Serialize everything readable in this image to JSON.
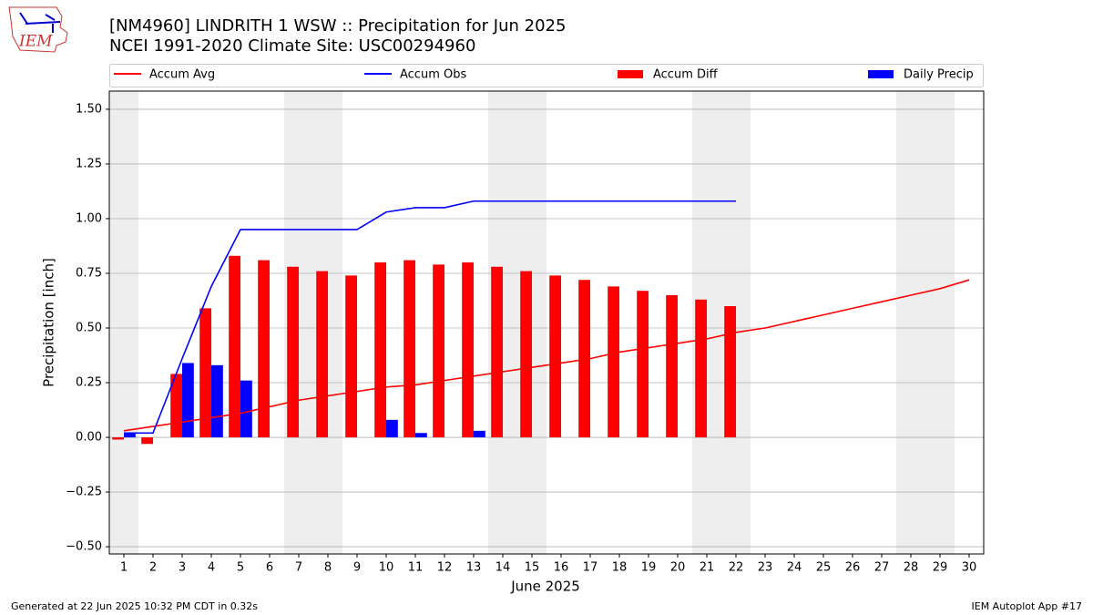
{
  "logo_text": "IEM",
  "footer_left": "Generated at 22 Jun 2025 10:32 PM CDT in 0.32s",
  "footer_right": "IEM Autoplot App #17",
  "chart_data": {
    "type": "bar",
    "title": "[NM4960] LINDRITH 1 WSW :: Precipitation for Jun 2025",
    "subtitle": "NCEI 1991-2020 Climate Site: USC00294960",
    "x_label": "June 2025",
    "y_label": "Precipitation [inch]",
    "x": [
      1,
      2,
      3,
      4,
      5,
      6,
      7,
      8,
      9,
      10,
      11,
      12,
      13,
      14,
      15,
      16,
      17,
      18,
      19,
      20,
      21,
      22,
      23,
      24,
      25,
      26,
      27,
      28,
      29,
      30
    ],
    "xlim": [
      0.5,
      30.5
    ],
    "xticks": [
      1,
      2,
      3,
      4,
      5,
      6,
      7,
      8,
      9,
      10,
      11,
      12,
      13,
      14,
      15,
      16,
      17,
      18,
      19,
      20,
      21,
      22,
      23,
      24,
      25,
      26,
      27,
      28,
      29,
      30
    ],
    "ylim": [
      -0.533,
      1.583
    ],
    "yticks": [
      {
        "value": -0.5,
        "label": "−0.50"
      },
      {
        "value": -0.25,
        "label": "−0.25"
      },
      {
        "value": 0,
        "label": "0.00"
      },
      {
        "value": 0.25,
        "label": "0.25"
      },
      {
        "value": 0.5,
        "label": "0.50"
      },
      {
        "value": 0.75,
        "label": "0.75"
      },
      {
        "value": 1,
        "label": "1.00"
      },
      {
        "value": 1.25,
        "label": "1.25"
      },
      {
        "value": 1.5,
        "label": "1.50"
      }
    ],
    "grid": true,
    "shaded_ranges": [
      [
        0.5,
        1.5
      ],
      [
        6.5,
        8.5
      ],
      [
        13.5,
        15.5
      ],
      [
        20.5,
        22.5
      ],
      [
        27.5,
        29.5
      ]
    ],
    "series": [
      {
        "name": "Accum Avg",
        "kind": "line",
        "color": "#ff0000",
        "values": [
          0.03,
          0.05,
          0.07,
          0.09,
          0.11,
          0.14,
          0.17,
          0.19,
          0.21,
          0.23,
          0.24,
          0.26,
          0.28,
          0.3,
          0.32,
          0.34,
          0.36,
          0.39,
          0.41,
          0.43,
          0.45,
          0.48,
          0.5,
          0.53,
          0.56,
          0.59,
          0.62,
          0.65,
          0.68,
          0.72
        ]
      },
      {
        "name": "Accum Obs",
        "kind": "line",
        "color": "#0000ff",
        "values": [
          0.02,
          0.02,
          0.36,
          0.69,
          0.95,
          0.95,
          0.95,
          0.95,
          0.95,
          1.03,
          1.05,
          1.05,
          1.08,
          1.08,
          1.08,
          1.08,
          1.08,
          1.08,
          1.08,
          1.08,
          1.08,
          1.08,
          null,
          null,
          null,
          null,
          null,
          null,
          null,
          null
        ]
      },
      {
        "name": "Accum Diff",
        "kind": "bar",
        "color": "#ff0000",
        "values": [
          -0.01,
          -0.03,
          0.29,
          0.59,
          0.83,
          0.81,
          0.78,
          0.76,
          0.74,
          0.8,
          0.81,
          0.79,
          0.8,
          0.78,
          0.76,
          0.74,
          0.72,
          0.69,
          0.67,
          0.65,
          0.63,
          0.6,
          null,
          null,
          null,
          null,
          null,
          null,
          null,
          null
        ]
      },
      {
        "name": "Daily Precip",
        "kind": "bar",
        "color": "#0000ff",
        "values": [
          0.02,
          0,
          0.34,
          0.33,
          0.26,
          0,
          0,
          0,
          0,
          0.08,
          0.02,
          0,
          0.03,
          0,
          0,
          0,
          0,
          0,
          0,
          0,
          0,
          0,
          null,
          null,
          null,
          null,
          null,
          null,
          null,
          null
        ]
      }
    ]
  }
}
